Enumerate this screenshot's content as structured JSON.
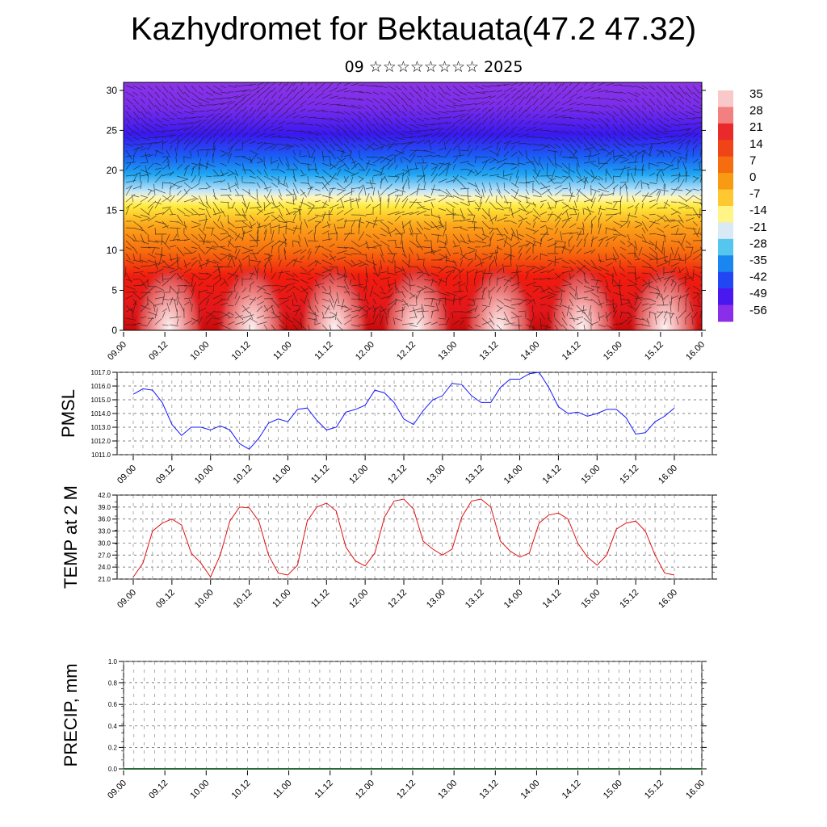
{
  "title": "Kazhydromet for Bektauata(47.2 47.32)",
  "subtitle": "09 ☆☆☆☆☆☆☆☆ 2025",
  "chart_data": [
    {
      "type": "heatmap",
      "name": "vertical cross-section",
      "x_ticks": [
        "09.00",
        "09.12",
        "10.00",
        "10.12",
        "11.00",
        "11.12",
        "12.00",
        "12.12",
        "13.00",
        "13.12",
        "14.00",
        "14.12",
        "15.00",
        "15.12",
        "16.00"
      ],
      "y_ticks": [
        "0",
        "5",
        "10",
        "15",
        "20",
        "25",
        "30"
      ],
      "ylim": [
        0,
        31
      ],
      "colorbar_labels": [
        "35",
        "28",
        "21",
        "14",
        "7",
        "0",
        "-7",
        "-14",
        "-21",
        "-28",
        "-35",
        "-42",
        "-49",
        "-56"
      ],
      "colorbar_colors": [
        "#f9c8c8",
        "#f28080",
        "#ea2a2a",
        "#f04418",
        "#f56d0e",
        "#f99a14",
        "#fec831",
        "#fff586",
        "#d9eaf5",
        "#57c6ef",
        "#1a86f0",
        "#2346f5",
        "#4a17f0",
        "#8a2eea"
      ],
      "overlay": "wind vectors"
    },
    {
      "type": "line",
      "ylabel": "PMSL",
      "ylim": [
        1011.0,
        1017.0
      ],
      "y_ticks": [
        "1011.0",
        "1012.0",
        "1013.0",
        "1014.0",
        "1015.0",
        "1016.0",
        "1017.0"
      ],
      "x_ticks": [
        "09.00",
        "09.12",
        "10.00",
        "10.12",
        "11.00",
        "11.12",
        "12.00",
        "12.12",
        "13.00",
        "13.12",
        "14.00",
        "14.12",
        "15.00",
        "15.12",
        "16.00"
      ],
      "color": "#1414ff",
      "values": [
        1015.4,
        1015.8,
        1015.7,
        1014.8,
        1013.2,
        1012.4,
        1013.0,
        1013.0,
        1012.8,
        1013.1,
        1012.8,
        1011.8,
        1011.4,
        1012.2,
        1013.3,
        1013.6,
        1013.4,
        1014.3,
        1014.4,
        1013.5,
        1012.8,
        1013.0,
        1014.1,
        1014.3,
        1014.6,
        1015.7,
        1015.5,
        1014.8,
        1013.6,
        1013.2,
        1014.2,
        1015.0,
        1015.3,
        1016.2,
        1016.1,
        1015.3,
        1014.8,
        1014.8,
        1015.9,
        1016.5,
        1016.5,
        1016.9,
        1017.0,
        1015.9,
        1014.5,
        1014.0,
        1014.1,
        1013.8,
        1014.0,
        1014.3,
        1014.3,
        1013.7,
        1012.5,
        1012.6,
        1013.4,
        1013.8,
        1014.4
      ]
    },
    {
      "type": "line",
      "ylabel": "TEMP at 2 M",
      "ylim": [
        21.0,
        42.0
      ],
      "y_ticks": [
        "21.0",
        "24.0",
        "27.0",
        "30.0",
        "33.0",
        "36.0",
        "39.0",
        "42.0"
      ],
      "x_ticks": [
        "09.00",
        "09.12",
        "10.00",
        "10.12",
        "11.00",
        "11.12",
        "12.00",
        "12.12",
        "13.00",
        "13.12",
        "14.00",
        "14.12",
        "15.00",
        "15.12",
        "16.00"
      ],
      "color": "#e01010",
      "values": [
        21.5,
        25.0,
        33.0,
        35.0,
        36.0,
        34.5,
        27.5,
        25.0,
        21.5,
        27.0,
        35.5,
        39.0,
        38.8,
        35.5,
        27.0,
        22.5,
        22.0,
        24.5,
        35.5,
        39.0,
        40.0,
        38.0,
        29.0,
        25.5,
        24.3,
        27.5,
        36.5,
        40.5,
        41.0,
        38.5,
        30.5,
        28.5,
        27.0,
        28.5,
        36.5,
        40.5,
        41.0,
        39.0,
        30.5,
        28.0,
        26.5,
        27.5,
        35.0,
        37.0,
        37.5,
        36.0,
        30.0,
        26.5,
        24.5,
        27.0,
        33.5,
        35.0,
        35.5,
        33.0,
        27.0,
        22.5,
        22.0
      ]
    },
    {
      "type": "line",
      "ylabel": "PRECIP, mm",
      "ylim": [
        0.0,
        1.0
      ],
      "y_ticks": [
        "0.0",
        "0.2",
        "0.4",
        "0.6",
        "0.8",
        "1.0"
      ],
      "x_ticks": [
        "09.00",
        "09.12",
        "10.00",
        "10.12",
        "11.00",
        "11.12",
        "12.00",
        "12.12",
        "13.00",
        "13.12",
        "14.00",
        "14.12",
        "15.00",
        "15.12",
        "16.00"
      ],
      "color": "#2a6a3a",
      "values": [
        0,
        0,
        0,
        0,
        0,
        0,
        0,
        0,
        0,
        0,
        0,
        0,
        0,
        0,
        0,
        0,
        0,
        0,
        0,
        0,
        0,
        0,
        0,
        0,
        0,
        0,
        0,
        0,
        0,
        0,
        0,
        0,
        0,
        0,
        0,
        0,
        0,
        0,
        0,
        0,
        0,
        0,
        0,
        0,
        0,
        0,
        0,
        0,
        0,
        0,
        0,
        0,
        0,
        0,
        0,
        0,
        0
      ]
    }
  ]
}
